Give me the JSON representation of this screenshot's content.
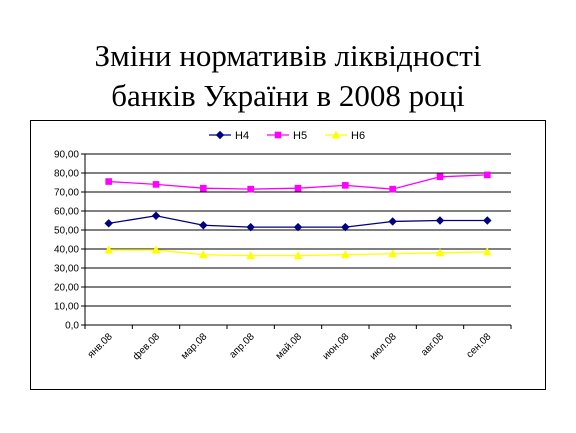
{
  "slide": {
    "title_line1": "Зміни нормативів ліквідності",
    "title_line2": "банків України в 2008 році"
  },
  "chart_data": {
    "type": "line",
    "title": "",
    "xlabel": "",
    "ylabel": "",
    "categories": [
      "янв.08",
      "фев.08",
      "мар.08",
      "апр.08",
      "май.08",
      "июн.08",
      "июл.08",
      "авг.08",
      "сен.08"
    ],
    "series": [
      {
        "name": "Н4",
        "color": "#000080",
        "marker": "diamond",
        "values": [
          53.5,
          57.5,
          52.5,
          51.5,
          51.5,
          51.5,
          54.5,
          55.0,
          55.0
        ]
      },
      {
        "name": "Н5",
        "color": "#FF00FF",
        "marker": "square",
        "values": [
          75.5,
          74.0,
          72.0,
          71.5,
          72.0,
          73.5,
          71.5,
          78.0,
          79.0
        ]
      },
      {
        "name": "Н6",
        "color": "#FFFF00",
        "marker": "triangle",
        "values": [
          39.5,
          39.5,
          37.0,
          36.5,
          36.5,
          37.0,
          37.5,
          38.0,
          38.5
        ]
      }
    ],
    "ylim": [
      0,
      90
    ],
    "yticks": [
      "0,0",
      "10,00",
      "20,00",
      "30,00",
      "40,00",
      "50,00",
      "60,00",
      "70,00",
      "80,00",
      "90,00"
    ],
    "grid": true,
    "legend_position": "top"
  }
}
